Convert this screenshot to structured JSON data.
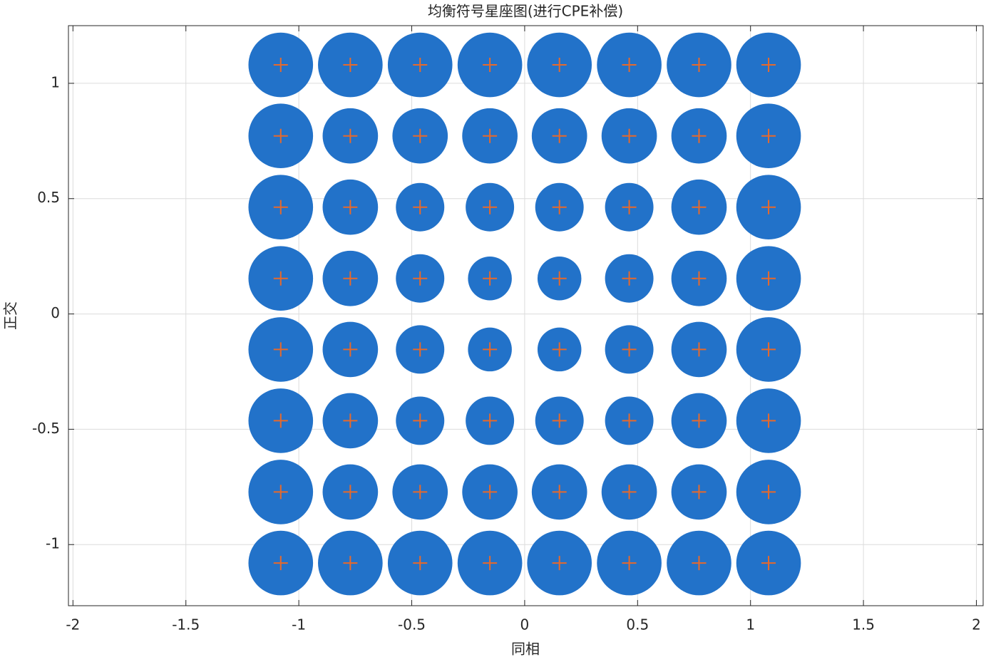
{
  "chart_data": {
    "type": "bubble",
    "title": "均衡符号星座图(进行CPE补偿)",
    "xlabel": "同相",
    "ylabel": "正交",
    "xlim": [
      -2.02,
      2.03
    ],
    "ylim": [
      -1.265,
      1.25
    ],
    "xticks": [
      -2,
      -1.5,
      -1,
      -0.5,
      0,
      0.5,
      1,
      1.5,
      2
    ],
    "yticks": [
      -1,
      -0.5,
      0,
      0.5,
      1
    ],
    "grid": true,
    "box": true,
    "series": [
      {
        "marker": "circle",
        "color": "#2272c9",
        "x": [
          -1.08,
          -0.772,
          -0.463,
          -0.154,
          0.154,
          0.463,
          0.772,
          1.08,
          -1.08,
          -0.772,
          -0.463,
          -0.154,
          0.154,
          0.463,
          0.772,
          1.08,
          -1.08,
          -0.772,
          -0.463,
          -0.154,
          0.154,
          0.463,
          0.772,
          1.08,
          -1.08,
          -0.772,
          -0.463,
          -0.154,
          0.154,
          0.463,
          0.772,
          1.08,
          -1.08,
          -0.772,
          -0.463,
          -0.154,
          0.154,
          0.463,
          0.772,
          1.08,
          -1.08,
          -0.772,
          -0.463,
          -0.154,
          0.154,
          0.463,
          0.772,
          1.08,
          -1.08,
          -0.772,
          -0.463,
          -0.154,
          0.154,
          0.463,
          0.772,
          1.08,
          -1.08,
          -0.772,
          -0.463,
          -0.154,
          0.154,
          0.463,
          0.772,
          1.08
        ],
        "y": [
          1.08,
          1.08,
          1.08,
          1.08,
          1.08,
          1.08,
          1.08,
          1.08,
          0.772,
          0.772,
          0.772,
          0.772,
          0.772,
          0.772,
          0.772,
          0.772,
          0.463,
          0.463,
          0.463,
          0.463,
          0.463,
          0.463,
          0.463,
          0.463,
          0.154,
          0.154,
          0.154,
          0.154,
          0.154,
          0.154,
          0.154,
          0.154,
          -0.154,
          -0.154,
          -0.154,
          -0.154,
          -0.154,
          -0.154,
          -0.154,
          -0.154,
          -0.463,
          -0.463,
          -0.463,
          -0.463,
          -0.463,
          -0.463,
          -0.463,
          -0.463,
          -0.772,
          -0.772,
          -0.772,
          -0.772,
          -0.772,
          -0.772,
          -0.772,
          -0.772,
          -1.08,
          -1.08,
          -1.08,
          -1.08,
          -1.08,
          -1.08,
          -1.08,
          -1.08
        ],
        "sizes": [
          0.14,
          0.14,
          0.14,
          0.14,
          0.14,
          0.14,
          0.14,
          0.14,
          0.14,
          0.12,
          0.12,
          0.12,
          0.12,
          0.12,
          0.12,
          0.14,
          0.14,
          0.12,
          0.105,
          0.105,
          0.105,
          0.105,
          0.12,
          0.14,
          0.14,
          0.12,
          0.105,
          0.095,
          0.095,
          0.105,
          0.12,
          0.14,
          0.14,
          0.12,
          0.105,
          0.095,
          0.095,
          0.105,
          0.12,
          0.14,
          0.14,
          0.12,
          0.105,
          0.105,
          0.105,
          0.105,
          0.12,
          0.14,
          0.14,
          0.12,
          0.12,
          0.12,
          0.12,
          0.12,
          0.12,
          0.14,
          0.14,
          0.14,
          0.14,
          0.14,
          0.14,
          0.14,
          0.14,
          0.14
        ]
      },
      {
        "marker": "plus",
        "color": "#e8692a",
        "x": [
          -1.08,
          -0.772,
          -0.463,
          -0.154,
          0.154,
          0.463,
          0.772,
          1.08,
          -1.08,
          -0.772,
          -0.463,
          -0.154,
          0.154,
          0.463,
          0.772,
          1.08,
          -1.08,
          -0.772,
          -0.463,
          -0.154,
          0.154,
          0.463,
          0.772,
          1.08,
          -1.08,
          -0.772,
          -0.463,
          -0.154,
          0.154,
          0.463,
          0.772,
          1.08,
          -1.08,
          -0.772,
          -0.463,
          -0.154,
          0.154,
          0.463,
          0.772,
          1.08,
          -1.08,
          -0.772,
          -0.463,
          -0.154,
          0.154,
          0.463,
          0.772,
          1.08,
          -1.08,
          -0.772,
          -0.463,
          -0.154,
          0.154,
          0.463,
          0.772,
          1.08,
          -1.08,
          -0.772,
          -0.463,
          -0.154,
          0.154,
          0.463,
          0.772,
          1.08
        ],
        "y": [
          1.08,
          1.08,
          1.08,
          1.08,
          1.08,
          1.08,
          1.08,
          1.08,
          0.772,
          0.772,
          0.772,
          0.772,
          0.772,
          0.772,
          0.772,
          0.772,
          0.463,
          0.463,
          0.463,
          0.463,
          0.463,
          0.463,
          0.463,
          0.463,
          0.154,
          0.154,
          0.154,
          0.154,
          0.154,
          0.154,
          0.154,
          0.154,
          -0.154,
          -0.154,
          -0.154,
          -0.154,
          -0.154,
          -0.154,
          -0.154,
          -0.154,
          -0.463,
          -0.463,
          -0.463,
          -0.463,
          -0.463,
          -0.463,
          -0.463,
          -0.463,
          -0.772,
          -0.772,
          -0.772,
          -0.772,
          -0.772,
          -0.772,
          -0.772,
          -0.772,
          -1.08,
          -1.08,
          -1.08,
          -1.08,
          -1.08,
          -1.08,
          -1.08,
          -1.08
        ]
      }
    ]
  }
}
